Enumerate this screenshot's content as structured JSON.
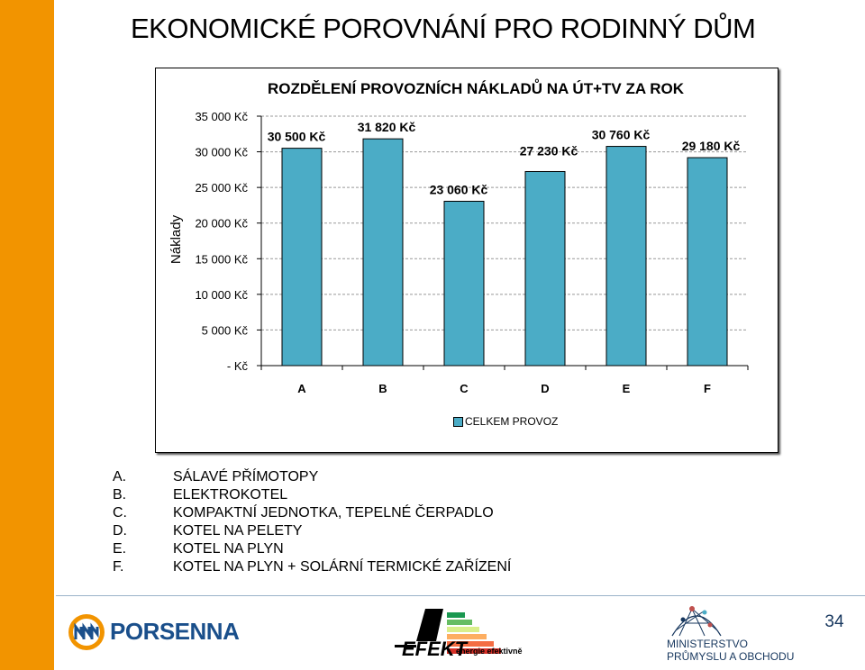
{
  "page": {
    "title": "EKONOMICKÉ POROVNÁNÍ PRO RODINNÝ DŮM",
    "page_number": "34"
  },
  "chart_data": {
    "type": "bar",
    "title": "ROZDĚLENÍ PROVOZNÍCH NÁKLADŮ NA ÚT+TV ZA ROK",
    "ylabel": "Náklady",
    "xlabel": "",
    "categories": [
      "A",
      "B",
      "C",
      "D",
      "E",
      "F"
    ],
    "series": [
      {
        "name": "CELKEM PROVOZ",
        "values": [
          30500,
          31820,
          23060,
          27230,
          30760,
          29180
        ],
        "labels": [
          "30 500 Kč",
          "31 820 Kč",
          "23 060 Kč",
          "27 230 Kč",
          "30 760 Kč",
          "29 180 Kč"
        ],
        "color": "#4bacc6"
      }
    ],
    "ylim": [
      0,
      35000
    ],
    "yticks": [
      0,
      5000,
      10000,
      15000,
      20000,
      25000,
      30000,
      35000
    ],
    "ytick_labels": [
      "- Kč",
      "5 000 Kč",
      "10 000 Kč",
      "15 000 Kč",
      "20 000 Kč",
      "25 000 Kč",
      "30 000 Kč",
      "35 000 Kč"
    ],
    "grid": true,
    "legend": "bottom"
  },
  "legend_list": [
    {
      "letter": "A.",
      "text": "SÁLAVÉ PŘÍMOTOPY"
    },
    {
      "letter": "B.",
      "text": "ELEKTROKOTEL"
    },
    {
      "letter": "C.",
      "text": "KOMPAKTNÍ JEDNOTKA, TEPELNÉ ČERPADLO"
    },
    {
      "letter": "D.",
      "text": "KOTEL NA PELETY"
    },
    {
      "letter": "E.",
      "text": "KOTEL NA PLYN"
    },
    {
      "letter": "F.",
      "text": "KOTEL NA PLYN + SOLÁRNÍ TERMICKÉ ZAŘÍZENÍ"
    }
  ],
  "logos": {
    "porsenna": {
      "text": "PORSENNA",
      "color": "#1a4f8b"
    },
    "efekt": {
      "text": "EFEKT",
      "subtitle": "energie efektivně"
    },
    "ministry": {
      "line1": "MINISTERSTVO",
      "line2": "PRŮMYSLU A OBCHODU",
      "color": "#17375e"
    }
  },
  "colors": {
    "accent": "#f29400",
    "bar": "#4bacc6"
  }
}
